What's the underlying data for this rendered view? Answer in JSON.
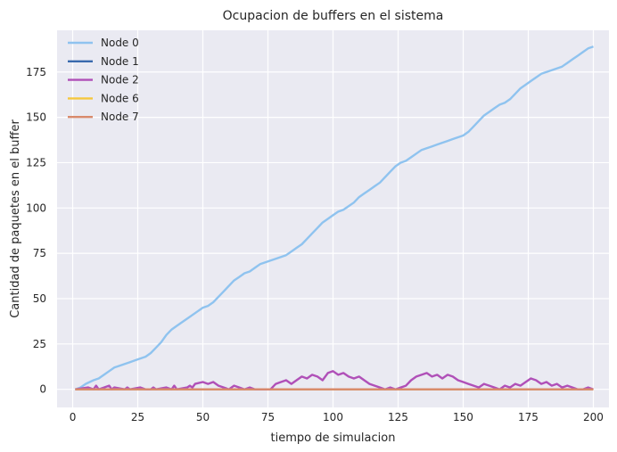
{
  "chart_data": {
    "type": "line",
    "title": "Ocupacion de buffers en el sistema",
    "xlabel": "tiempo de simulacion",
    "ylabel": "Cantidad de paquetes en el buffer",
    "xlim": [
      -6,
      206
    ],
    "ylim": [
      -10,
      198
    ],
    "xticks": [
      0,
      25,
      50,
      75,
      100,
      125,
      150,
      175,
      200
    ],
    "yticks": [
      0,
      25,
      50,
      75,
      100,
      125,
      150,
      175
    ],
    "grid": true,
    "legend_position": "top-left",
    "style": {
      "axes_bg": "#eaeaf2",
      "grid_color": "#ffffff"
    },
    "series": [
      {
        "name": "Node 0",
        "color": "#8fc3ef",
        "x": [
          1,
          3,
          5,
          8,
          10,
          12,
          14,
          16,
          18,
          20,
          22,
          24,
          26,
          28,
          30,
          32,
          34,
          36,
          38,
          40,
          42,
          44,
          46,
          48,
          50,
          52,
          54,
          56,
          58,
          60,
          62,
          64,
          66,
          68,
          70,
          72,
          74,
          76,
          78,
          80,
          82,
          84,
          86,
          88,
          90,
          92,
          94,
          96,
          98,
          100,
          102,
          104,
          106,
          108,
          110,
          112,
          114,
          116,
          118,
          120,
          122,
          124,
          126,
          128,
          130,
          132,
          134,
          136,
          138,
          140,
          142,
          144,
          146,
          148,
          150,
          152,
          154,
          156,
          158,
          160,
          162,
          164,
          166,
          168,
          170,
          172,
          174,
          176,
          178,
          180,
          182,
          184,
          186,
          188,
          190,
          192,
          194,
          196,
          198,
          200
        ],
        "values": [
          0,
          1,
          3,
          5,
          6,
          8,
          10,
          12,
          13,
          14,
          15,
          16,
          17,
          18,
          20,
          23,
          26,
          30,
          33,
          35,
          37,
          39,
          41,
          43,
          45,
          46,
          48,
          51,
          54,
          57,
          60,
          62,
          64,
          65,
          67,
          69,
          70,
          71,
          72,
          73,
          74,
          76,
          78,
          80,
          83,
          86,
          89,
          92,
          94,
          96,
          98,
          99,
          101,
          103,
          106,
          108,
          110,
          112,
          114,
          117,
          120,
          123,
          125,
          126,
          128,
          130,
          132,
          133,
          134,
          135,
          136,
          137,
          138,
          139,
          140,
          142,
          145,
          148,
          151,
          153,
          155,
          157,
          158,
          160,
          163,
          166,
          168,
          170,
          172,
          174,
          175,
          176,
          177,
          178,
          180,
          182,
          184,
          186,
          188,
          189
        ]
      },
      {
        "name": "Node 1",
        "color": "#3a6aad",
        "x": [
          1,
          200
        ],
        "values": [
          0,
          0
        ]
      },
      {
        "name": "Node 2",
        "color": "#b050b8",
        "x": [
          1,
          6,
          8,
          9,
          10,
          14,
          15,
          16,
          20,
          21,
          22,
          26,
          28,
          30,
          31,
          32,
          36,
          38,
          39,
          40,
          44,
          45,
          46,
          47,
          50,
          52,
          54,
          56,
          58,
          60,
          62,
          64,
          66,
          68,
          70,
          72,
          74,
          76,
          78,
          80,
          82,
          84,
          86,
          88,
          90,
          92,
          94,
          96,
          98,
          100,
          102,
          104,
          106,
          108,
          110,
          112,
          114,
          116,
          118,
          120,
          122,
          124,
          126,
          128,
          130,
          132,
          134,
          136,
          138,
          140,
          142,
          144,
          146,
          148,
          150,
          152,
          154,
          156,
          158,
          160,
          162,
          164,
          166,
          168,
          170,
          172,
          174,
          176,
          178,
          180,
          182,
          184,
          186,
          188,
          190,
          192,
          194,
          196,
          198,
          200
        ],
        "values": [
          0,
          1,
          0,
          2,
          0,
          2,
          0,
          1,
          0,
          1,
          0,
          1,
          0,
          0,
          1,
          0,
          1,
          0,
          2,
          0,
          1,
          2,
          1,
          3,
          4,
          3,
          4,
          2,
          1,
          0,
          2,
          1,
          0,
          1,
          0,
          0,
          0,
          0,
          3,
          4,
          5,
          3,
          5,
          7,
          6,
          8,
          7,
          5,
          9,
          10,
          8,
          9,
          7,
          6,
          7,
          5,
          3,
          2,
          1,
          0,
          1,
          0,
          1,
          2,
          5,
          7,
          8,
          9,
          7,
          8,
          6,
          8,
          7,
          5,
          4,
          3,
          2,
          1,
          3,
          2,
          1,
          0,
          2,
          1,
          3,
          2,
          4,
          6,
          5,
          3,
          4,
          2,
          3,
          1,
          2,
          1,
          0,
          0,
          1,
          0
        ]
      },
      {
        "name": "Node 6",
        "color": "#f5c83e",
        "x": [
          1,
          200
        ],
        "values": [
          0,
          0
        ]
      },
      {
        "name": "Node 7",
        "color": "#d98a6c",
        "x": [
          1,
          200
        ],
        "values": [
          0,
          0
        ]
      }
    ]
  }
}
